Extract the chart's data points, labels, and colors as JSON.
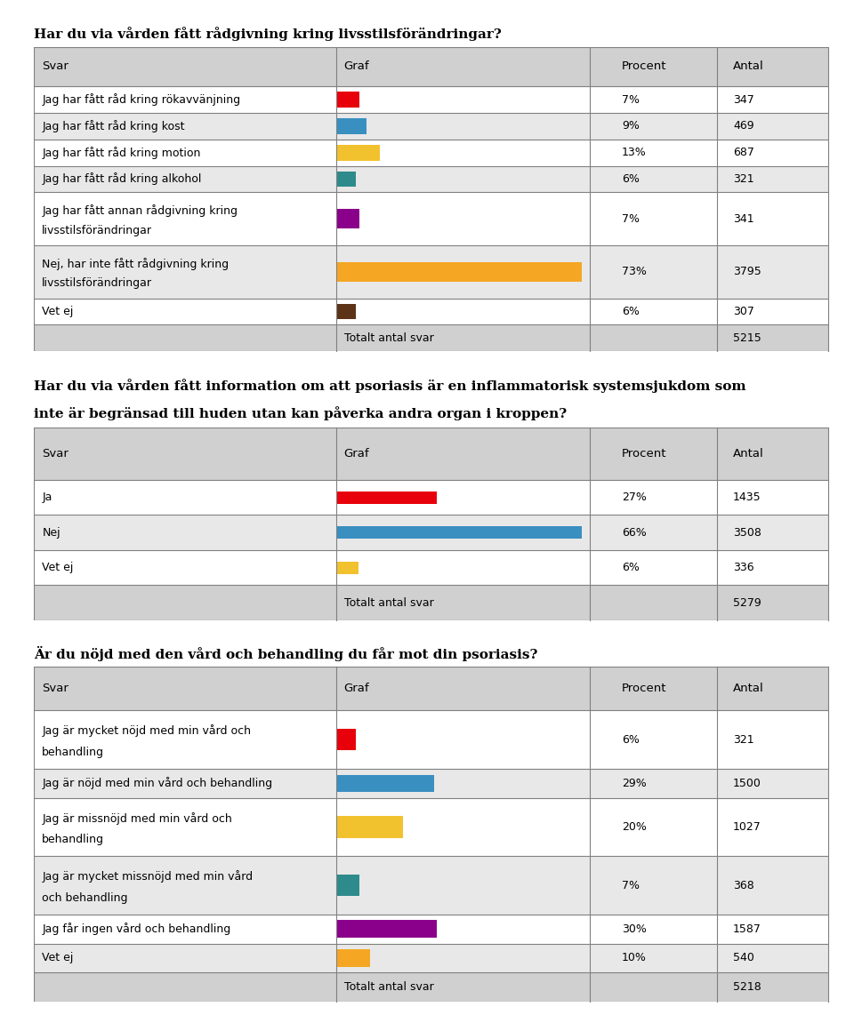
{
  "title1": "Har du via vården fått rådgivning kring livsstilsförändringar?",
  "table1_header": [
    "Svar",
    "Graf",
    "Procent",
    "Antal"
  ],
  "table1_rows": [
    {
      "label": "Jag har fått råd kring rökavvänjning",
      "pct": "7%",
      "antal": "347",
      "value": 7,
      "color": "#E8000B"
    },
    {
      "label": "Jag har fått råd kring kost",
      "pct": "9%",
      "antal": "469",
      "value": 9,
      "color": "#3A8FC1"
    },
    {
      "label": "Jag har fått råd kring motion",
      "pct": "13%",
      "antal": "687",
      "value": 13,
      "color": "#F2C12E"
    },
    {
      "label": "Jag har fått råd kring alkohol",
      "pct": "6%",
      "antal": "321",
      "value": 6,
      "color": "#2E8B8B"
    },
    {
      "label": "Jag har fått annan rådgivning kring\nlivsstilsförändringar",
      "pct": "7%",
      "antal": "341",
      "value": 7,
      "color": "#8B008B"
    },
    {
      "label": "Nej, har inte fått rådgivning kring\nlivsstilsförändringar",
      "pct": "73%",
      "antal": "3795",
      "value": 73,
      "color": "#F5A623"
    },
    {
      "label": "Vet ej",
      "pct": "6%",
      "antal": "307",
      "value": 6,
      "color": "#5C3317"
    }
  ],
  "table1_total": "5215",
  "title2": "Har du via vården fått information om att psoriasis är en inflammatorisk systemsjukdom som\ninte är begränsad till huden utan kan påverka andra organ i kroppen?",
  "table2_header": [
    "Svar",
    "Graf",
    "Procent",
    "Antal"
  ],
  "table2_rows": [
    {
      "label": "Ja",
      "pct": "27%",
      "antal": "1435",
      "value": 27,
      "color": "#E8000B"
    },
    {
      "label": "Nej",
      "pct": "66%",
      "antal": "3508",
      "value": 66,
      "color": "#3A8FC1"
    },
    {
      "label": "Vet ej",
      "pct": "6%",
      "antal": "336",
      "value": 6,
      "color": "#F2C12E"
    }
  ],
  "table2_total": "5279",
  "title3": "Är du nöjd med den vård och behandling du får mot din psoriasis?",
  "table3_header": [
    "Svar",
    "Graf",
    "Procent",
    "Antal"
  ],
  "table3_rows": [
    {
      "label": "Jag är mycket nöjd med min vård och\nbehandling",
      "pct": "6%",
      "antal": "321",
      "value": 6,
      "color": "#E8000B"
    },
    {
      "label": "Jag är nöjd med min vård och behandling",
      "pct": "29%",
      "antal": "1500",
      "value": 29,
      "color": "#3A8FC1"
    },
    {
      "label": "Jag är missnöjd med min vård och\nbehandling",
      "pct": "20%",
      "antal": "1027",
      "value": 20,
      "color": "#F2C12E"
    },
    {
      "label": "Jag är mycket missnöjd med min vård\noch behandling",
      "pct": "7%",
      "antal": "368",
      "value": 7,
      "color": "#2E8B8B"
    },
    {
      "label": "Jag får ingen vård och behandling",
      "pct": "30%",
      "antal": "1587",
      "value": 30,
      "color": "#8B008B"
    },
    {
      "label": "Vet ej",
      "pct": "10%",
      "antal": "540",
      "value": 10,
      "color": "#F5A623"
    }
  ],
  "table3_total": "5218",
  "bg_color": "#FFFFFF",
  "header_bg": "#D0D0D0",
  "row_bg_light": "#FFFFFF",
  "row_bg_dark": "#E8E8E8",
  "total_bg": "#D0D0D0",
  "border_color": "#808080",
  "font_size_title": 11,
  "font_size_header": 9.5,
  "font_size_row": 9,
  "max_bar_width": 73
}
